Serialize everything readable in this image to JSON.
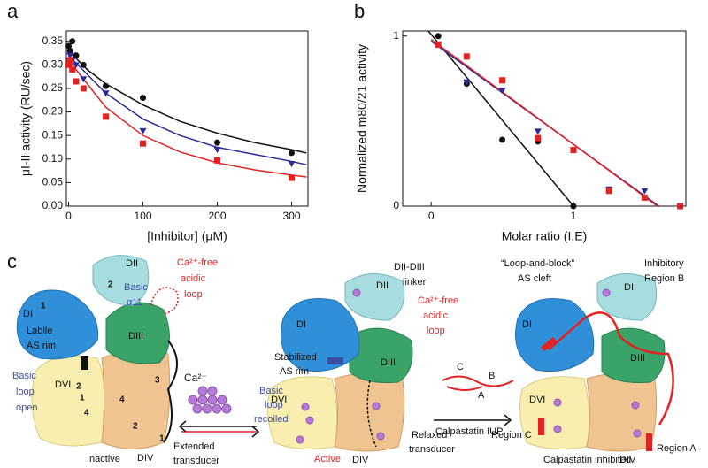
{
  "chart_data": [
    {
      "type": "scatter",
      "label": "a",
      "xlabel": "[Inhibitor] (μM)",
      "ylabel": "μI-II activity (RU/sec)",
      "xlim": [
        -3,
        322
      ],
      "ylim": [
        0,
        0.372
      ],
      "xticks": [
        0,
        100,
        200,
        300
      ],
      "yticks": [
        {
          "value": 0,
          "label": "0.00"
        },
        0.05,
        {
          "value": 0.1,
          "label": "0.10"
        },
        0.15,
        {
          "value": 0.2,
          "label": "0.20"
        },
        0.25,
        {
          "value": 0.3,
          "label": "0.30"
        },
        0.35
      ],
      "series": [
        {
          "color": "#111111",
          "marker": "circle",
          "x": [
            0,
            2,
            5,
            10,
            20,
            50,
            100,
            200,
            300
          ],
          "values": [
            0.34,
            0.33,
            0.35,
            0.32,
            0.3,
            0.255,
            0.23,
            0.135,
            0.113
          ]
        },
        {
          "color": "#2b2b9a",
          "marker": "triangle-down",
          "x": [
            0,
            2,
            5,
            10,
            20,
            50,
            100,
            200,
            300
          ],
          "values": [
            0.31,
            0.32,
            0.31,
            0.3,
            0.27,
            0.24,
            0.16,
            0.12,
            0.09
          ]
        },
        {
          "color": "#e32222",
          "marker": "square",
          "x": [
            0,
            2,
            5,
            10,
            20,
            50,
            100,
            200,
            300
          ],
          "values": [
            0.3,
            0.31,
            0.29,
            0.265,
            0.25,
            0.19,
            0.133,
            0.097,
            0.06
          ]
        }
      ],
      "fits": [
        {
          "color": "#111111",
          "x": [
            0,
            25,
            50,
            100,
            150,
            200,
            250,
            300,
            320
          ],
          "values": [
            0.33,
            0.29,
            0.26,
            0.215,
            0.18,
            0.155,
            0.135,
            0.12,
            0.113
          ]
        },
        {
          "color": "#2b2b9a",
          "x": [
            0,
            25,
            50,
            100,
            150,
            200,
            250,
            300,
            320
          ],
          "values": [
            0.32,
            0.28,
            0.24,
            0.185,
            0.15,
            0.125,
            0.11,
            0.095,
            0.088
          ]
        },
        {
          "color": "#e32222",
          "x": [
            0,
            25,
            50,
            100,
            150,
            200,
            250,
            300,
            320
          ],
          "values": [
            0.31,
            0.26,
            0.21,
            0.15,
            0.115,
            0.092,
            0.077,
            0.066,
            0.062
          ]
        }
      ]
    },
    {
      "type": "scatter",
      "label": "b",
      "xlabel": "Molar ratio (I:E)",
      "ylabel": "Normalized m80/21 activity",
      "xlim": [
        -0.2,
        1.79
      ],
      "ylim": [
        0,
        1.03
      ],
      "xticks": [
        0,
        1
      ],
      "yticks": [
        0,
        1
      ],
      "series": [
        {
          "color": "#111111",
          "marker": "circle",
          "x": [
            0.05,
            0.25,
            0.5,
            0.75,
            1
          ],
          "values": [
            1,
            0.72,
            0.39,
            0.38,
            0
          ]
        },
        {
          "color": "#2b2b9a",
          "marker": "triangle-down",
          "x": [
            0.05,
            0.25,
            0.5,
            0.75,
            1,
            1.25,
            1.5,
            1.75
          ],
          "values": [
            0.95,
            0.73,
            0.68,
            0.44,
            0.33,
            0.1,
            0.09,
            0
          ]
        },
        {
          "color": "#e32222",
          "marker": "square",
          "x": [
            0.05,
            0.25,
            0.5,
            0.75,
            1,
            1.25,
            1.5,
            1.75
          ],
          "values": [
            0.95,
            0.88,
            0.74,
            0.4,
            0.33,
            0.09,
            0.05,
            0
          ]
        }
      ],
      "fits": [
        {
          "color": "#111111",
          "x": [
            -0.02,
            1
          ],
          "values": [
            1.03,
            0
          ]
        },
        {
          "color": "#2b2b9a",
          "x": [
            0,
            1.6
          ],
          "values": [
            0.97,
            0
          ]
        },
        {
          "color": "#e32222",
          "x": [
            0,
            1.59
          ],
          "values": [
            0.98,
            0
          ]
        }
      ]
    }
  ],
  "diagram": {
    "label": "c",
    "inactive": {
      "dii": "DII",
      "n2": "2",
      "basic": [
        "Basic",
        "α11"
      ],
      "acidic": [
        "Ca²⁺-free",
        "acidic",
        "loop"
      ],
      "di": "DI",
      "n1": "1",
      "rim": [
        "Labile",
        "AS rim"
      ],
      "loop": [
        "Basic",
        "loop",
        "open"
      ],
      "diii": "DIII",
      "dvi": "DVI",
      "m2": "2",
      "m1": "1",
      "m4": "4",
      "k4": "4",
      "k2": "2",
      "k3": "3",
      "div": "DIV",
      "k1": "1",
      "transducer": [
        "Extended",
        "transducer"
      ],
      "state": "Inactive"
    },
    "calcium": "Ca²⁺",
    "active": {
      "dii": "DII",
      "di": "DI",
      "rim": [
        "Stabilized",
        "AS rim"
      ],
      "loop": [
        "Basic",
        "loop",
        "recoiled"
      ],
      "linker": [
        "DII-DIII",
        "linker"
      ],
      "acidic": [
        "Ca²⁺-free",
        "acidic",
        "loop"
      ],
      "diii": "DIII",
      "dvi": "DVI",
      "div": "DIV",
      "transducer": [
        "Relaxed",
        "transducer"
      ],
      "state": "Active"
    },
    "iup": {
      "c": "C",
      "b": "B",
      "a": "A",
      "name": "Calpastatin IUP"
    },
    "inhibited": {
      "cleft": [
        "“Loop-and-block”",
        "AS cleft"
      ],
      "regionb": [
        "Inhibitory",
        "Region B"
      ],
      "dii": "DII",
      "di": "DI",
      "diii": "DIII",
      "dvi": "DVI",
      "regionc": "Region C",
      "regiona": "Region A",
      "div": "DIV",
      "state": "Calpastatin inhibited"
    }
  }
}
